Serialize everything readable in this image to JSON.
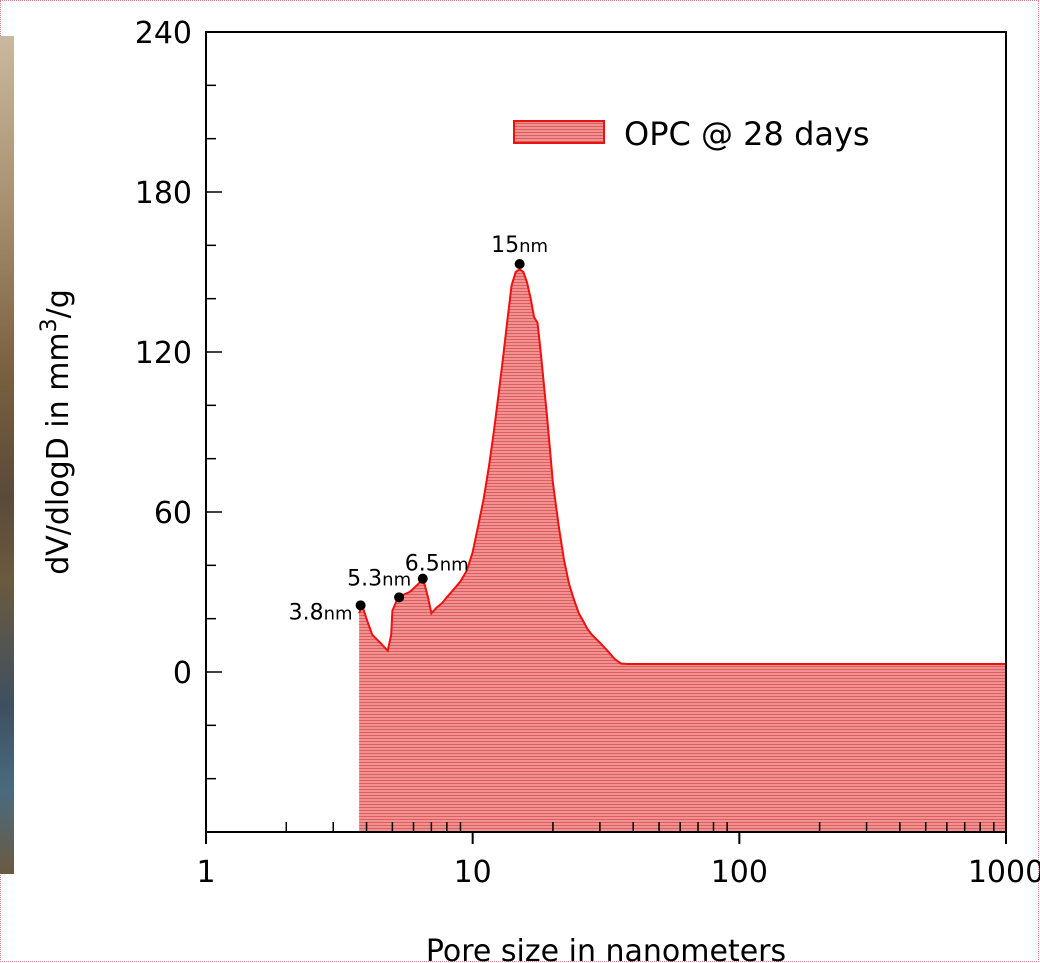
{
  "chart_data": {
    "type": "area",
    "xscale": "log",
    "xlabel": "Pore size in nanometers",
    "ylabel_base": "dV/dlogD in mm",
    "ylabel_sup": "3",
    "ylabel_tail": "/g",
    "xlim": [
      1,
      1000
    ],
    "ylim": [
      -60,
      240
    ],
    "x_ticks": [
      1,
      10,
      100,
      1000
    ],
    "x_tick_labels": [
      "1",
      "10",
      "100",
      "1000"
    ],
    "y_ticks": [
      0,
      60,
      120,
      180,
      240
    ],
    "y_tick_labels": [
      "0",
      "60",
      "120",
      "180",
      "240"
    ],
    "legend": {
      "position": "top-right",
      "label": "OPC @ 28 days"
    },
    "colors": {
      "fill": "#f08080",
      "line": "#ee1111"
    },
    "series": [
      {
        "name": "OPC @ 28 days",
        "x": [
          3.75,
          3.85,
          4.0,
          4.2,
          4.5,
          4.8,
          4.95,
          5.0,
          5.2,
          5.5,
          5.8,
          6.1,
          6.4,
          6.6,
          6.8,
          7.0,
          7.3,
          7.7,
          8.0,
          8.5,
          9.0,
          9.5,
          10.0,
          10.5,
          11.0,
          11.5,
          12.0,
          12.5,
          13.0,
          13.5,
          14.0,
          14.5,
          15.0,
          15.5,
          16.0,
          16.5,
          17.0,
          17.5,
          18.0,
          19.0,
          20.0,
          21.0,
          22.0,
          23.0,
          24.0,
          25.0,
          26.0,
          27.0,
          28.0,
          30.0,
          32.0,
          34.0,
          35.0,
          36.0,
          38.0,
          40.0,
          50.0,
          100.0,
          200.0,
          500.0,
          1000.0
        ],
        "y": [
          22,
          25,
          20,
          14,
          11,
          8,
          14,
          23,
          27,
          29,
          30,
          32,
          34,
          33,
          28,
          22,
          24,
          26,
          28,
          31,
          34,
          38,
          45,
          55,
          65,
          77,
          90,
          104,
          118,
          132,
          145,
          150,
          151,
          150,
          146,
          140,
          133,
          131,
          120,
          96,
          71,
          55,
          42,
          33,
          27,
          22,
          19,
          16,
          14,
          11,
          8,
          5,
          4,
          3.2,
          3,
          3,
          3,
          3,
          3,
          3,
          3
        ]
      }
    ],
    "annotations": [
      {
        "num": "3.8",
        "unit": "nm",
        "x": 3.8,
        "y": 25
      },
      {
        "num": "5.3",
        "unit": "nm",
        "x": 5.3,
        "y": 28
      },
      {
        "num": "6.5",
        "unit": "nm",
        "x": 6.5,
        "y": 35
      },
      {
        "num": "15",
        "unit": "nm",
        "x": 15,
        "y": 153
      }
    ]
  }
}
